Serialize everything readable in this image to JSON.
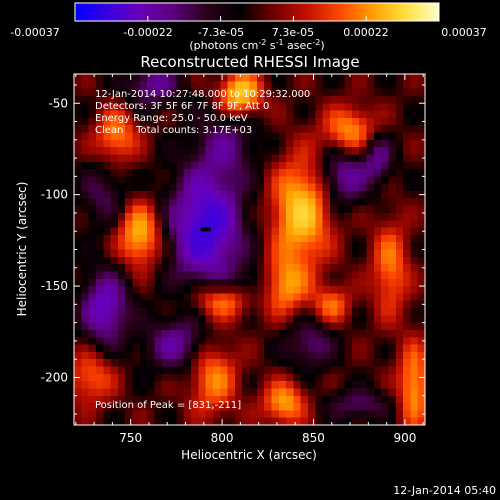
{
  "colorbar": {
    "ticks": [
      "-0.00037",
      "-0.00022",
      "-7.3e-05",
      "7.3e-05",
      "0.00022",
      "0.00037"
    ],
    "units_prefix": "(photons cm",
    "units_exp1": "-2",
    "units_mid": " s",
    "units_exp2": "-1",
    "units_mid2": " asec",
    "units_exp3": "-2",
    "units_suffix": ")",
    "colors": [
      "#0000ff",
      "#3a00e0",
      "#6a00b8",
      "#5a007a",
      "#2a0018",
      "#000000",
      "#700000",
      "#c01000",
      "#ff4800",
      "#ffa000",
      "#ffe040",
      "#ffffc8"
    ]
  },
  "plot": {
    "title": "Reconstructed RHESSI Image",
    "info_lines": [
      "12-Jan-2014 10:27:48.000 to 10:29:32.000",
      "Detectors: 3F 5F 6F 7F 8F 9F, Att 0",
      "Energy Range: 25.0 - 50.0 keV",
      "Clean    Total counts: 3.17E+03"
    ],
    "peak_text": "Position of Peak = [831,-211]",
    "timestamp": "12-Jan-2014 05:40"
  },
  "chart_data": {
    "type": "heatmap",
    "title": "Reconstructed RHESSI Image",
    "xlabel": "Heliocentric X (arcsec)",
    "ylabel": "Heliocentric Y (arcsec)",
    "xlim": [
      719,
      911
    ],
    "ylim": [
      -226,
      -34
    ],
    "xticks": [
      750,
      800,
      850,
      900
    ],
    "xtick_labels": [
      "750",
      "800",
      "850",
      "900"
    ],
    "yticks": [
      -50,
      -100,
      -150,
      -200
    ],
    "ytick_labels": [
      "-50",
      "-100",
      "-150",
      "-200"
    ],
    "zlim": [
      -0.00037,
      0.00037
    ],
    "peak_position": [
      831,
      -211
    ],
    "peak_marker": [
      791,
      -119
    ],
    "blobs": [
      {
        "x": 791,
        "y": -118,
        "sx": 14,
        "sy": 22,
        "amp": -1.0
      },
      {
        "x": 736,
        "y": -162,
        "sx": 9,
        "sy": 14,
        "amp": -0.75
      },
      {
        "x": 762,
        "y": -40,
        "sx": 10,
        "sy": 8,
        "amp": -0.55
      },
      {
        "x": 866,
        "y": -90,
        "sx": 9,
        "sy": 11,
        "amp": -0.6
      },
      {
        "x": 885,
        "y": -80,
        "sx": 6,
        "sy": 10,
        "amp": -0.5
      },
      {
        "x": 775,
        "y": -182,
        "sx": 12,
        "sy": 10,
        "amp": -0.55
      },
      {
        "x": 802,
        "y": -72,
        "sx": 12,
        "sy": 14,
        "amp": -0.4
      },
      {
        "x": 848,
        "y": -182,
        "sx": 9,
        "sy": 9,
        "amp": -0.45
      },
      {
        "x": 820,
        "y": -150,
        "sx": 10,
        "sy": 8,
        "amp": -0.35
      },
      {
        "x": 735,
        "y": -100,
        "sx": 9,
        "sy": 12,
        "amp": -0.35
      },
      {
        "x": 875,
        "y": -215,
        "sx": 12,
        "sy": 6,
        "amp": -0.4
      },
      {
        "x": 810,
        "y": -45,
        "sx": 8,
        "sy": 8,
        "amp": 0.95
      },
      {
        "x": 843,
        "y": -110,
        "sx": 11,
        "sy": 20,
        "amp": 0.9
      },
      {
        "x": 833,
        "y": -150,
        "sx": 9,
        "sy": 10,
        "amp": 0.75
      },
      {
        "x": 755,
        "y": -122,
        "sx": 8,
        "sy": 12,
        "amp": 0.8
      },
      {
        "x": 742,
        "y": -68,
        "sx": 8,
        "sy": 10,
        "amp": 0.6
      },
      {
        "x": 870,
        "y": -65,
        "sx": 10,
        "sy": 9,
        "amp": 0.65
      },
      {
        "x": 800,
        "y": -158,
        "sx": 11,
        "sy": 7,
        "amp": 0.65
      },
      {
        "x": 795,
        "y": -200,
        "sx": 9,
        "sy": 14,
        "amp": 0.6
      },
      {
        "x": 892,
        "y": -140,
        "sx": 7,
        "sy": 18,
        "amp": 0.55
      },
      {
        "x": 834,
        "y": -214,
        "sx": 8,
        "sy": 8,
        "amp": 0.7
      },
      {
        "x": 728,
        "y": -200,
        "sx": 9,
        "sy": 10,
        "amp": 0.5
      },
      {
        "x": 905,
        "y": -205,
        "sx": 6,
        "sy": 16,
        "amp": 0.7
      },
      {
        "x": 860,
        "y": -160,
        "sx": 7,
        "sy": 7,
        "amp": 0.5
      }
    ]
  }
}
